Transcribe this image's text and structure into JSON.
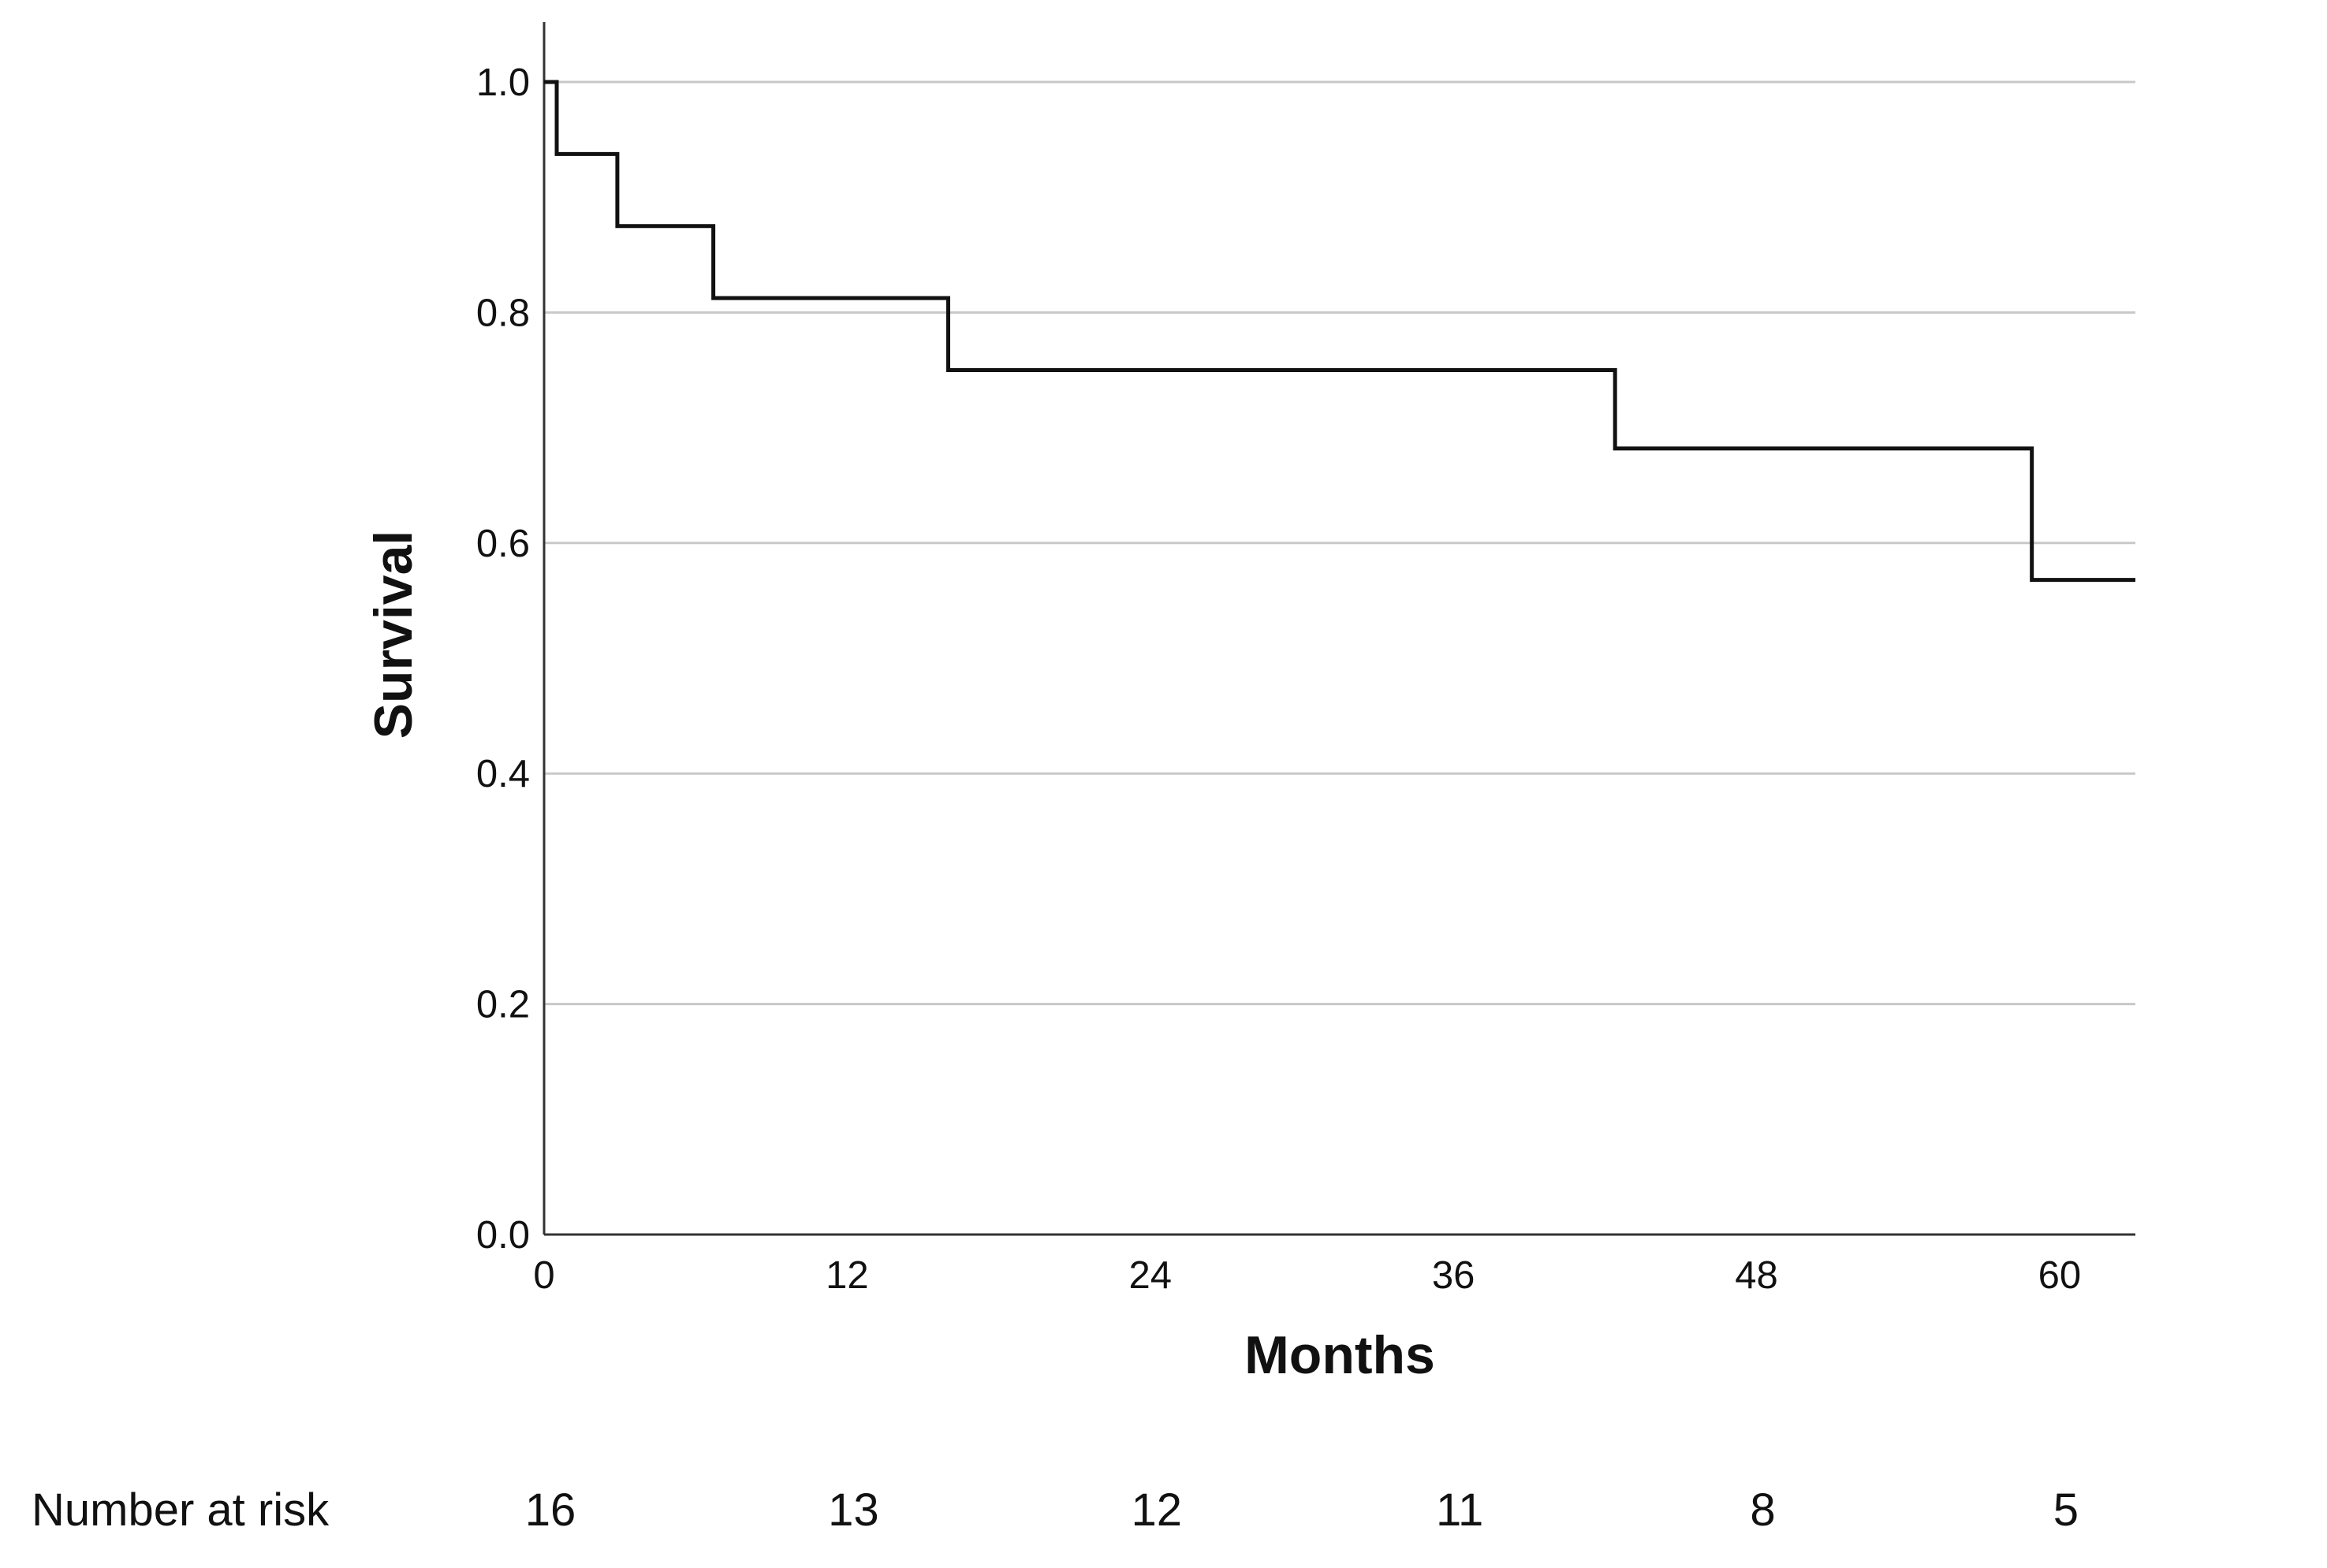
{
  "chart_data": {
    "type": "line",
    "title": "",
    "xlabel": "Months",
    "ylabel": "Survival",
    "xlim": [
      0,
      63
    ],
    "ylim": [
      0,
      1.0
    ],
    "grid": true,
    "x_ticks": [
      "0",
      "12",
      "24",
      "36",
      "48",
      "60"
    ],
    "y_ticks": [
      "0.0",
      "0.2",
      "0.4",
      "0.6",
      "0.8",
      "1.0"
    ],
    "series": [
      {
        "step": "post",
        "x": [
          0,
          0.5,
          2.9,
          6.7,
          16.0,
          42.4,
          58.9,
          63
        ],
        "y": [
          1.0,
          0.9375,
          0.875,
          0.8125,
          0.75,
          0.682,
          0.568,
          0.568
        ]
      }
    ],
    "risk_table": {
      "label": "Number at risk",
      "x": [
        0,
        12,
        24,
        36,
        48,
        60
      ],
      "values": [
        "16",
        "13",
        "12",
        "11",
        "8",
        "5"
      ]
    }
  }
}
